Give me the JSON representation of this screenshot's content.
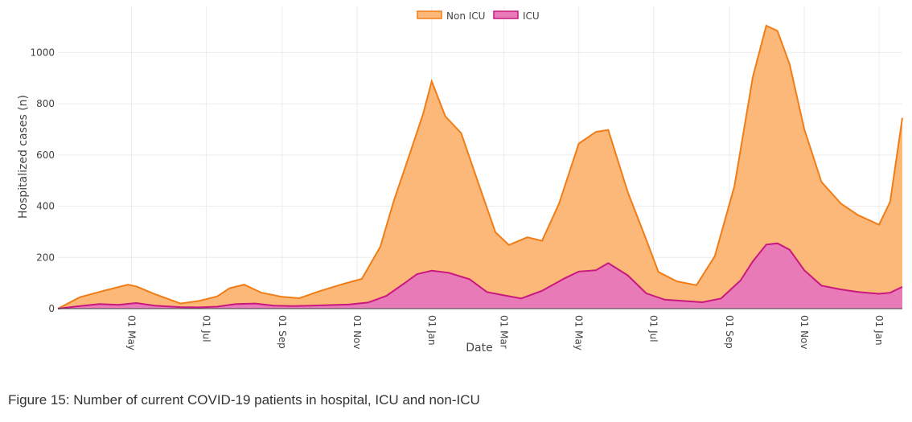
{
  "caption": "Figure 15: Number of current COVID-19 patients in hospital, ICU and non-ICU",
  "chart_data": {
    "type": "area",
    "stacked": true,
    "xlabel": "Date",
    "ylabel": "Hospitalized cases (n)",
    "x_range": [
      "2020-03-02",
      "2022-01-20"
    ],
    "ylim": [
      0,
      1180
    ],
    "y_ticks": [
      0,
      200,
      400,
      600,
      800,
      1000
    ],
    "x_tick_labels": [
      {
        "date": "2020-05-01",
        "label": "01 May"
      },
      {
        "date": "2020-07-01",
        "label": "01 Jul"
      },
      {
        "date": "2020-09-01",
        "label": "01 Sep"
      },
      {
        "date": "2020-11-01",
        "label": "01 Nov"
      },
      {
        "date": "2021-01-01",
        "label": "01 Jan"
      },
      {
        "date": "2021-03-01",
        "label": "01 Mar"
      },
      {
        "date": "2021-05-01",
        "label": "01 May"
      },
      {
        "date": "2021-07-01",
        "label": "01 Jul"
      },
      {
        "date": "2021-09-01",
        "label": "01 Sep"
      },
      {
        "date": "2021-11-01",
        "label": "01 Nov"
      },
      {
        "date": "2022-01-01",
        "label": "01 Jan"
      }
    ],
    "grid": true,
    "legend_position": "top-center",
    "series": [
      {
        "name": "ICU",
        "color": "#c9187f",
        "fill": "#e87ab8",
        "points": [
          [
            "2020-03-02",
            0
          ],
          [
            "2020-03-20",
            10
          ],
          [
            "2020-04-05",
            18
          ],
          [
            "2020-04-20",
            15
          ],
          [
            "2020-05-05",
            22
          ],
          [
            "2020-05-20",
            12
          ],
          [
            "2020-06-10",
            6
          ],
          [
            "2020-06-25",
            5
          ],
          [
            "2020-07-10",
            8
          ],
          [
            "2020-07-25",
            18
          ],
          [
            "2020-08-10",
            20
          ],
          [
            "2020-08-25",
            12
          ],
          [
            "2020-09-10",
            10
          ],
          [
            "2020-09-25",
            12
          ],
          [
            "2020-10-10",
            14
          ],
          [
            "2020-10-25",
            16
          ],
          [
            "2020-11-10",
            24
          ],
          [
            "2020-11-25",
            50
          ],
          [
            "2020-12-10",
            100
          ],
          [
            "2020-12-20",
            135
          ],
          [
            "2021-01-01",
            148
          ],
          [
            "2021-01-15",
            140
          ],
          [
            "2021-02-01",
            115
          ],
          [
            "2021-02-15",
            65
          ],
          [
            "2021-03-01",
            52
          ],
          [
            "2021-03-15",
            40
          ],
          [
            "2021-04-01",
            70
          ],
          [
            "2021-04-20",
            120
          ],
          [
            "2021-05-01",
            145
          ],
          [
            "2021-05-15",
            150
          ],
          [
            "2021-05-25",
            178
          ],
          [
            "2021-06-10",
            130
          ],
          [
            "2021-06-25",
            60
          ],
          [
            "2021-07-10",
            35
          ],
          [
            "2021-07-25",
            30
          ],
          [
            "2021-08-10",
            25
          ],
          [
            "2021-08-25",
            40
          ],
          [
            "2021-09-10",
            110
          ],
          [
            "2021-09-20",
            185
          ],
          [
            "2021-10-01",
            250
          ],
          [
            "2021-10-10",
            255
          ],
          [
            "2021-10-20",
            230
          ],
          [
            "2021-11-01",
            150
          ],
          [
            "2021-11-15",
            90
          ],
          [
            "2021-12-01",
            75
          ],
          [
            "2021-12-15",
            65
          ],
          [
            "2022-01-01",
            58
          ],
          [
            "2022-01-10",
            62
          ],
          [
            "2022-01-20",
            85
          ]
        ]
      },
      {
        "name": "Non ICU",
        "color": "#f07d17",
        "fill": "#fbb878",
        "points": [
          [
            "2020-03-02",
            0
          ],
          [
            "2020-03-20",
            35
          ],
          [
            "2020-04-10",
            55
          ],
          [
            "2020-04-28",
            75
          ],
          [
            "2020-05-05",
            65
          ],
          [
            "2020-05-20",
            45
          ],
          [
            "2020-06-10",
            14
          ],
          [
            "2020-06-25",
            25
          ],
          [
            "2020-07-10",
            40
          ],
          [
            "2020-07-20",
            65
          ],
          [
            "2020-08-01",
            75
          ],
          [
            "2020-08-15",
            45
          ],
          [
            "2020-09-01",
            35
          ],
          [
            "2020-09-15",
            30
          ],
          [
            "2020-10-01",
            55
          ],
          [
            "2020-10-20",
            80
          ],
          [
            "2020-11-05",
            95
          ],
          [
            "2020-11-20",
            200
          ],
          [
            "2020-12-01",
            350
          ],
          [
            "2020-12-15",
            500
          ],
          [
            "2020-12-25",
            620
          ],
          [
            "2021-01-01",
            740
          ],
          [
            "2021-01-12",
            610
          ],
          [
            "2021-01-25",
            560
          ],
          [
            "2021-02-10",
            380
          ],
          [
            "2021-02-22",
            240
          ],
          [
            "2021-03-05",
            200
          ],
          [
            "2021-03-20",
            230
          ],
          [
            "2021-04-01",
            195
          ],
          [
            "2021-04-15",
            305
          ],
          [
            "2021-05-01",
            500
          ],
          [
            "2021-05-15",
            540
          ],
          [
            "2021-05-25",
            520
          ],
          [
            "2021-06-10",
            325
          ],
          [
            "2021-06-25",
            210
          ],
          [
            "2021-07-05",
            100
          ],
          [
            "2021-07-20",
            75
          ],
          [
            "2021-08-05",
            65
          ],
          [
            "2021-08-20",
            170
          ],
          [
            "2021-09-05",
            390
          ],
          [
            "2021-09-20",
            720
          ],
          [
            "2021-10-01",
            855
          ],
          [
            "2021-10-10",
            830
          ],
          [
            "2021-10-20",
            725
          ],
          [
            "2021-11-01",
            550
          ],
          [
            "2021-11-15",
            405
          ],
          [
            "2021-12-01",
            335
          ],
          [
            "2021-12-15",
            300
          ],
          [
            "2022-01-01",
            270
          ],
          [
            "2022-01-10",
            355
          ],
          [
            "2022-01-20",
            660
          ]
        ]
      }
    ]
  }
}
